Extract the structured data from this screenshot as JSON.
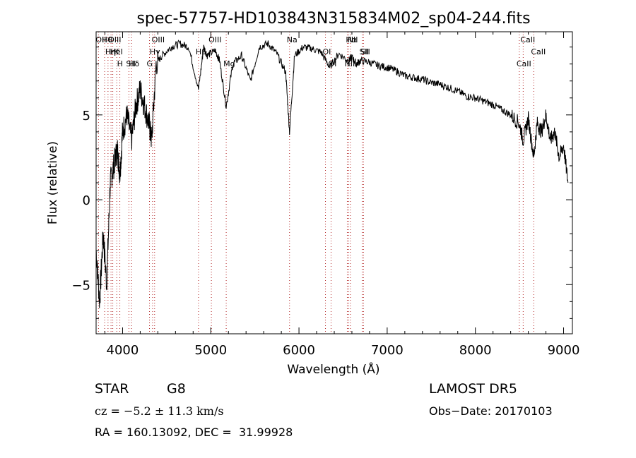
{
  "header": {
    "title": "spec-57757-HD103843N315834M02_sp04-244.fits"
  },
  "info": {
    "class_label": "STAR",
    "subclass_label": "G8",
    "survey": "LAMOST DR5",
    "cz_text": "cz = −5.2 ± 11.3 km/s",
    "obs_date_text": "Obs−Date: 20170103",
    "radec_text": "RA = 160.13092, DEC =  31.99928"
  },
  "chart_data": {
    "type": "line",
    "title": "spec-57757-HD103843N315834M02_sp04-244.fits",
    "xlabel": "Wavelength (Å)",
    "ylabel": "Flux (relative)",
    "xlim": [
      3700,
      9100
    ],
    "ylim": [
      -7.9,
      9.9
    ],
    "xticks": [
      4000,
      5000,
      6000,
      7000,
      8000,
      9000
    ],
    "yticks": [
      -5,
      0,
      5
    ],
    "grid": false,
    "series": [
      {
        "color": "#000000",
        "x": [
          3700,
          3740,
          3780,
          3820,
          3860,
          3900,
          3940,
          3970,
          4000,
          4050,
          4102,
          4150,
          4200,
          4250,
          4300,
          4330,
          4380,
          4450,
          4550,
          4650,
          4750,
          4861,
          4920,
          4960,
          5050,
          5100,
          5175,
          5250,
          5350,
          5450,
          5550,
          5650,
          5750,
          5850,
          5893,
          5950,
          6050,
          6150,
          6250,
          6350,
          6450,
          6563,
          6600,
          6650,
          6700,
          6800,
          6900,
          7000,
          7100,
          7200,
          7300,
          7400,
          7500,
          7600,
          7700,
          7800,
          7900,
          8000,
          8100,
          8200,
          8300,
          8400,
          8498,
          8542,
          8600,
          8662,
          8700,
          8750,
          8800,
          8850,
          8900,
          8950,
          9000,
          9050
        ],
        "y": [
          -3,
          -6,
          -2,
          -5,
          1,
          2,
          3,
          1.5,
          4,
          5,
          3.5,
          5.5,
          6.5,
          5.5,
          4.5,
          3.5,
          8,
          8.5,
          9,
          9.2,
          9,
          6.5,
          9,
          8.5,
          8.8,
          8.2,
          5.5,
          8,
          8.5,
          7,
          9,
          9.2,
          8.6,
          7.5,
          4,
          8.5,
          9,
          8.9,
          8.7,
          7.8,
          8.6,
          8.2,
          8.4,
          8,
          8.2,
          8.1,
          7.9,
          7.8,
          7.6,
          7.3,
          7.2,
          7.1,
          6.9,
          6.8,
          6.6,
          6.4,
          6.1,
          6.0,
          5.8,
          5.6,
          5.3,
          5.0,
          4.5,
          3.5,
          4.8,
          2.5,
          4.5,
          4.0,
          5.0,
          3.5,
          4.0,
          2.5,
          3.2,
          1.0
        ]
      }
    ],
    "annotations": [
      {
        "label": "Hθ",
        "wavelength": 3797
      },
      {
        "label": "K",
        "wavelength": 3934
      },
      {
        "label": "Hδ",
        "wavelength": 4102
      },
      {
        "label": "OII",
        "wavelength": 3727
      },
      {
        "label": "HeI",
        "wavelength": 3889
      },
      {
        "label": "SII",
        "wavelength": 4072
      },
      {
        "label": "OIII",
        "wavelength": 3869
      },
      {
        "label": "Hη",
        "wavelength": 3835
      },
      {
        "label": "H",
        "wavelength": 3969
      },
      {
        "label": "OIII",
        "wavelength": 4363
      },
      {
        "label": "Hγ",
        "wavelength": 4340
      },
      {
        "label": "G",
        "wavelength": 4305
      },
      {
        "label": "OIII",
        "wavelength": 5007
      },
      {
        "label": "Hβ",
        "wavelength": 4861
      },
      {
        "label": "Mg",
        "wavelength": 5175
      },
      {
        "label": "Na",
        "wavelength": 5893
      },
      {
        "label": "OI",
        "wavelength": 6300
      },
      {
        "label": "OI",
        "wavelength": 6364
      },
      {
        "label": "Hα",
        "wavelength": 6563
      },
      {
        "label": "SII",
        "wavelength": 6717
      },
      {
        "label": "NII",
        "wavelength": 6548
      },
      {
        "label": "NII",
        "wavelength": 6583
      },
      {
        "label": "SII",
        "wavelength": 6731
      },
      {
        "label": "CaII",
        "wavelength": 8498
      },
      {
        "label": "CaII",
        "wavelength": 8542
      },
      {
        "label": "CaII",
        "wavelength": 8662
      }
    ]
  }
}
